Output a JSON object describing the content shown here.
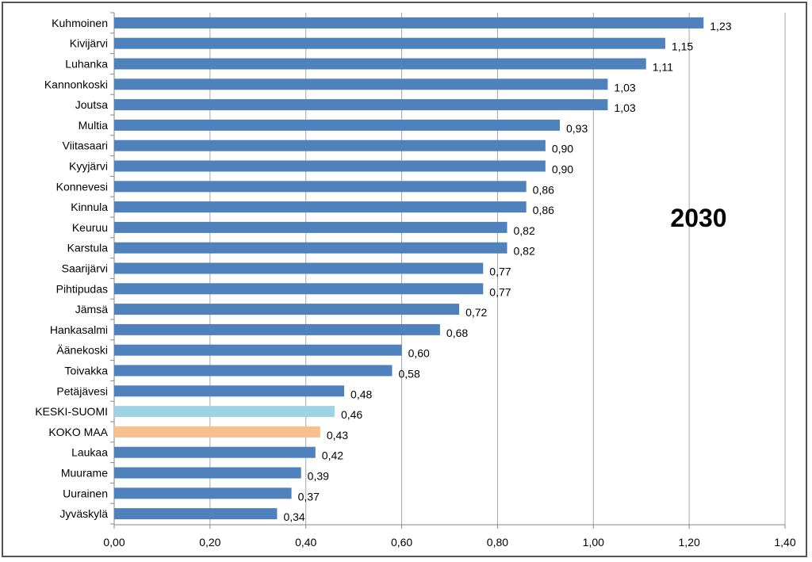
{
  "chart_data": {
    "type": "bar",
    "orientation": "horizontal",
    "title": "2030",
    "xlabel": "",
    "ylabel": "",
    "xlim": [
      0,
      1.4
    ],
    "x_ticks": [
      "0,00",
      "0,20",
      "0,40",
      "0,60",
      "0,80",
      "1,00",
      "1,20",
      "1,40"
    ],
    "grid": "vertical",
    "categories": [
      "Kuhmoinen",
      "Kivijärvi",
      "Luhanka",
      "Kannonkoski",
      "Joutsa",
      "Multia",
      "Viitasaari",
      "Kyyjärvi",
      "Konnevesi",
      "Kinnula",
      "Keuruu",
      "Karstula",
      "Saarijärvi",
      "Pihtipudas",
      "Jämsä",
      "Hankasalmi",
      "Äänekoski",
      "Toivakka",
      "Petäjävesi",
      "KESKI-SUOMI",
      "KOKO MAA",
      "Laukaa",
      "Muurame",
      "Uurainen",
      "Jyväskylä"
    ],
    "values": [
      1.23,
      1.15,
      1.11,
      1.03,
      1.03,
      0.93,
      0.9,
      0.9,
      0.86,
      0.86,
      0.82,
      0.82,
      0.77,
      0.77,
      0.72,
      0.68,
      0.6,
      0.58,
      0.48,
      0.46,
      0.43,
      0.42,
      0.39,
      0.37,
      0.34
    ],
    "value_labels": [
      "1,23",
      "1,15",
      "1,11",
      "1,03",
      "1,03",
      "0,93",
      "0,90",
      "0,90",
      "0,86",
      "0,86",
      "0,82",
      "0,82",
      "0,77",
      "0,77",
      "0,72",
      "0,68",
      "0,60",
      "0,58",
      "0,48",
      "0,46",
      "0,43",
      "0,42",
      "0,39",
      "0,37",
      "0,34"
    ],
    "colors": {
      "default": "#4f81bd",
      "highlight": {
        "KESKI-SUOMI": "#9fd3e3",
        "KOKO MAA": "#f8c08f"
      },
      "grid": "#a6a6a6",
      "axis": "#868686"
    }
  }
}
